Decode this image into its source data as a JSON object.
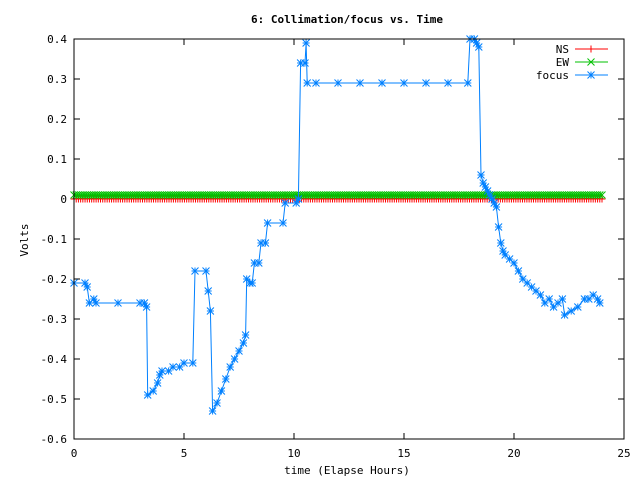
{
  "chart_data": {
    "type": "line",
    "title": "6: Collimation/focus vs. Time",
    "xlabel": "time (Elapse Hours)",
    "ylabel": "Volts",
    "xlim": [
      0,
      25
    ],
    "ylim": [
      -0.6,
      0.4
    ],
    "x_ticks": [
      0,
      5,
      10,
      15,
      20,
      25
    ],
    "x_tick_labels": [
      "0",
      "5",
      "10",
      "15",
      "20",
      "25"
    ],
    "y_ticks": [
      -0.6,
      -0.5,
      -0.4,
      -0.3,
      -0.2,
      -0.1,
      0,
      0.1,
      0.2,
      0.3,
      0.4
    ],
    "y_tick_labels": [
      "-0.6",
      "-0.5",
      "-0.4",
      "-0.3",
      "-0.2",
      "-0.1",
      "0",
      "0.1",
      "0.2",
      "0.3",
      "0.4"
    ],
    "grid": false,
    "legend_position": "top-right",
    "series": [
      {
        "name": "NS",
        "color": "#ff0000",
        "marker": "plus",
        "x_range": [
          0,
          24
        ],
        "constant_y": 0.0,
        "point_count": 240
      },
      {
        "name": "EW",
        "color": "#00c000",
        "marker": "cross",
        "x_range": [
          0,
          24
        ],
        "constant_y": 0.01,
        "point_count": 240
      },
      {
        "name": "focus",
        "color": "#0080ff",
        "marker": "star",
        "points": [
          [
            0.0,
            -0.21
          ],
          [
            0.5,
            -0.21
          ],
          [
            0.6,
            -0.22
          ],
          [
            0.7,
            -0.26
          ],
          [
            0.9,
            -0.25
          ],
          [
            1.0,
            -0.26
          ],
          [
            2.0,
            -0.26
          ],
          [
            3.0,
            -0.26
          ],
          [
            3.2,
            -0.26
          ],
          [
            3.3,
            -0.27
          ],
          [
            3.35,
            -0.49
          ],
          [
            3.6,
            -0.48
          ],
          [
            3.8,
            -0.46
          ],
          [
            3.9,
            -0.44
          ],
          [
            4.0,
            -0.43
          ],
          [
            4.3,
            -0.43
          ],
          [
            4.5,
            -0.42
          ],
          [
            4.8,
            -0.42
          ],
          [
            5.0,
            -0.41
          ],
          [
            5.4,
            -0.41
          ],
          [
            5.5,
            -0.18
          ],
          [
            6.0,
            -0.18
          ],
          [
            6.1,
            -0.23
          ],
          [
            6.2,
            -0.28
          ],
          [
            6.3,
            -0.53
          ],
          [
            6.5,
            -0.51
          ],
          [
            6.7,
            -0.48
          ],
          [
            6.9,
            -0.45
          ],
          [
            7.1,
            -0.42
          ],
          [
            7.3,
            -0.4
          ],
          [
            7.5,
            -0.38
          ],
          [
            7.7,
            -0.36
          ],
          [
            7.8,
            -0.34
          ],
          [
            7.85,
            -0.2
          ],
          [
            8.0,
            -0.21
          ],
          [
            8.1,
            -0.21
          ],
          [
            8.2,
            -0.16
          ],
          [
            8.4,
            -0.16
          ],
          [
            8.5,
            -0.11
          ],
          [
            8.7,
            -0.11
          ],
          [
            8.8,
            -0.06
          ],
          [
            9.5,
            -0.06
          ],
          [
            9.6,
            -0.01
          ],
          [
            10.1,
            -0.01
          ],
          [
            10.2,
            0.0
          ],
          [
            10.3,
            0.34
          ],
          [
            10.5,
            0.34
          ],
          [
            10.55,
            0.39
          ],
          [
            10.6,
            0.29
          ],
          [
            11.0,
            0.29
          ],
          [
            12.0,
            0.29
          ],
          [
            13.0,
            0.29
          ],
          [
            14.0,
            0.29
          ],
          [
            15.0,
            0.29
          ],
          [
            16.0,
            0.29
          ],
          [
            17.0,
            0.29
          ],
          [
            17.9,
            0.29
          ],
          [
            18.0,
            0.4
          ],
          [
            18.2,
            0.4
          ],
          [
            18.3,
            0.39
          ],
          [
            18.4,
            0.38
          ],
          [
            18.5,
            0.06
          ],
          [
            18.6,
            0.04
          ],
          [
            18.7,
            0.03
          ],
          [
            18.8,
            0.02
          ],
          [
            18.9,
            0.01
          ],
          [
            19.0,
            0.0
          ],
          [
            19.1,
            -0.01
          ],
          [
            19.2,
            -0.02
          ],
          [
            19.3,
            -0.07
          ],
          [
            19.4,
            -0.11
          ],
          [
            19.5,
            -0.13
          ],
          [
            19.6,
            -0.14
          ],
          [
            19.8,
            -0.15
          ],
          [
            20.0,
            -0.16
          ],
          [
            20.2,
            -0.18
          ],
          [
            20.4,
            -0.2
          ],
          [
            20.6,
            -0.21
          ],
          [
            20.8,
            -0.22
          ],
          [
            21.0,
            -0.23
          ],
          [
            21.2,
            -0.24
          ],
          [
            21.4,
            -0.26
          ],
          [
            21.6,
            -0.25
          ],
          [
            21.8,
            -0.27
          ],
          [
            22.0,
            -0.26
          ],
          [
            22.2,
            -0.25
          ],
          [
            22.3,
            -0.29
          ],
          [
            22.6,
            -0.28
          ],
          [
            22.9,
            -0.27
          ],
          [
            23.2,
            -0.25
          ],
          [
            23.4,
            -0.25
          ],
          [
            23.6,
            -0.24
          ],
          [
            23.8,
            -0.25
          ],
          [
            23.9,
            -0.26
          ]
        ]
      }
    ]
  }
}
